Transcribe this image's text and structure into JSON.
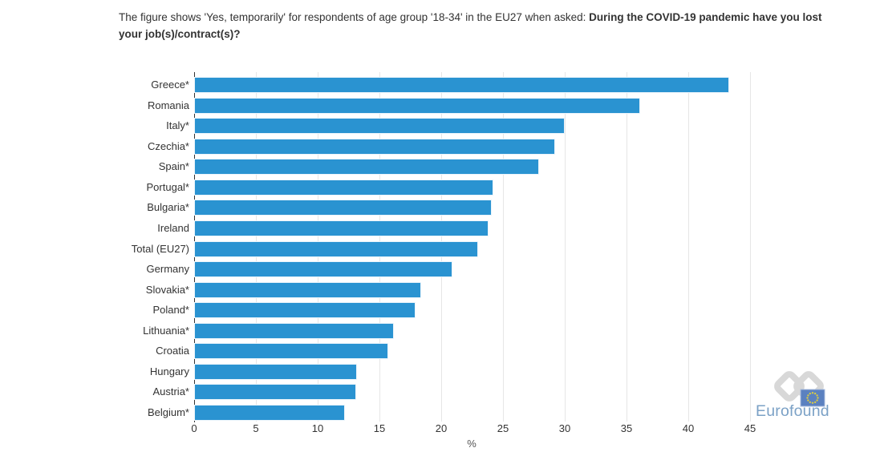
{
  "header": {
    "title_prefix": "The figure shows 'Yes, temporarily' for respondents of age group '18-34' in the EU27 when asked: ",
    "title_question": "During the COVID-19 pandemic have you lost your job(s)/contract(s)?"
  },
  "chart_data": {
    "type": "bar",
    "orientation": "horizontal",
    "categories": [
      "Greece*",
      "Romania",
      "Italy*",
      "Czechia*",
      "Spain*",
      "Portugal*",
      "Bulgaria*",
      "Ireland",
      "Total (EU27)",
      "Germany",
      "Slovakia*",
      "Poland*",
      "Lithuania*",
      "Croatia",
      "Hungary",
      "Austria*",
      "Belgium*"
    ],
    "values": [
      43.3,
      36.1,
      30.0,
      29.2,
      27.9,
      24.2,
      24.1,
      23.8,
      23.0,
      20.9,
      18.4,
      17.9,
      16.2,
      15.7,
      13.2,
      13.1,
      12.2
    ],
    "series_name": "Yes, temporarily",
    "xlabel": "%",
    "xlim": [
      0,
      45
    ],
    "x_ticks": [
      0,
      5,
      10,
      15,
      20,
      25,
      30,
      35,
      40,
      45
    ],
    "grid": true,
    "legend_position": "none",
    "bar_color": "#2a93d1"
  },
  "branding": {
    "logo_text": "Eurofound"
  },
  "colors": {
    "bar": "#2a93d1",
    "axis_text": "#333333",
    "title_text": "#333333",
    "gridline": "#e6e6e6",
    "axis_line": "#333333",
    "logo_text": "#7ba1c6",
    "logo_chain": "#d8d8d8",
    "flag_blue": "#5b81c0",
    "flag_border": "#a9bcdd",
    "flag_stars": "#d8ca45"
  }
}
